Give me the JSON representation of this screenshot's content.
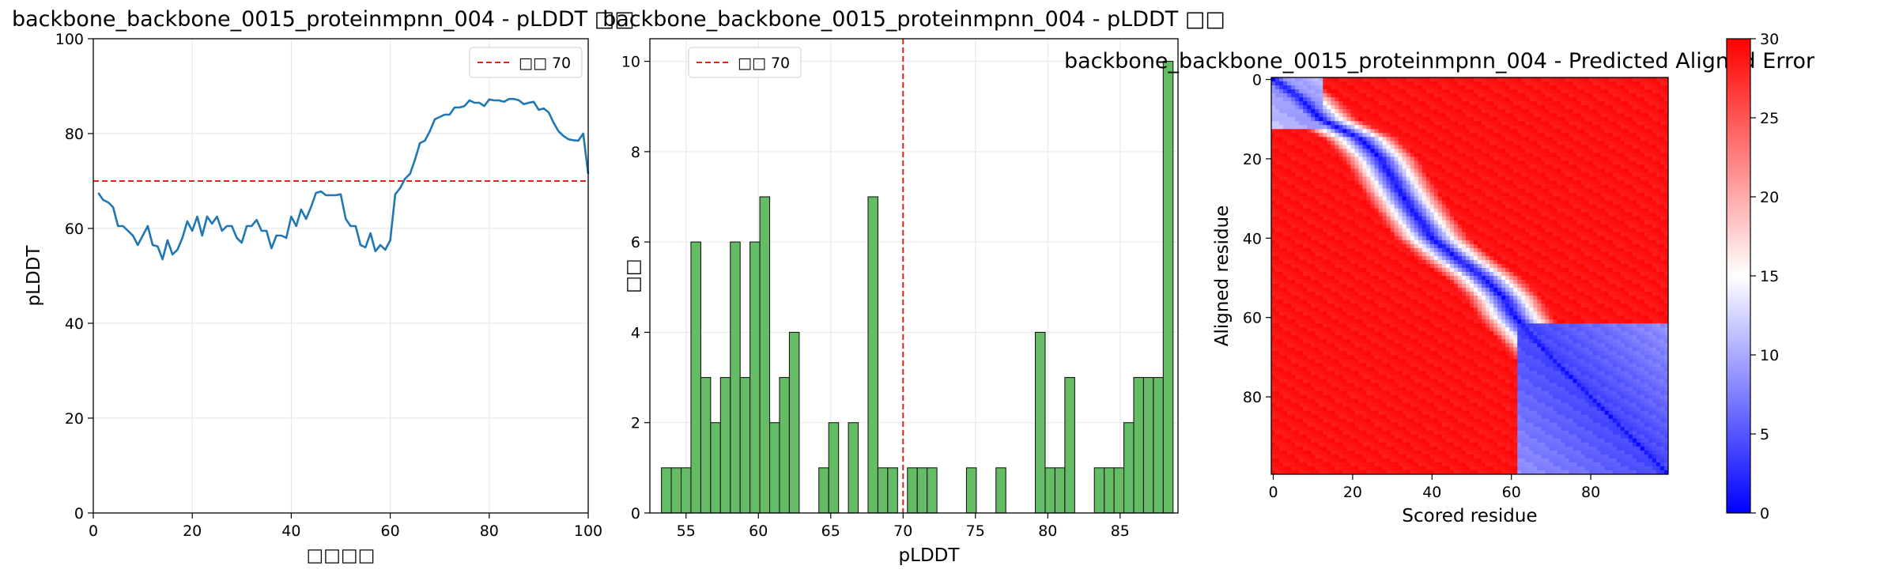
{
  "chart_data": [
    {
      "type": "line",
      "title": "backbone_backbone_0015_proteinmpnn_004 - pLDDT □□",
      "xlabel": "□□□□",
      "ylabel": "pLDDT",
      "xlim": [
        0,
        100
      ],
      "ylim": [
        0,
        100
      ],
      "xticks": [
        0,
        20,
        40,
        60,
        80,
        100
      ],
      "yticks": [
        0,
        20,
        40,
        60,
        80,
        100
      ],
      "grid": true,
      "legend": {
        "placement": "top-right",
        "entries": [
          "□□ 70"
        ]
      },
      "threshold": {
        "value": 70,
        "label": "□□ 70",
        "color": "#e8211b"
      },
      "series": [
        {
          "color": "#1f77b4",
          "x": [
            1,
            2,
            3,
            4,
            5,
            6,
            7,
            8,
            9,
            10,
            11,
            12,
            13,
            14,
            15,
            16,
            17,
            18,
            19,
            20,
            21,
            22,
            23,
            24,
            25,
            26,
            27,
            28,
            29,
            30,
            31,
            32,
            33,
            34,
            35,
            36,
            37,
            38,
            39,
            40,
            41,
            42,
            43,
            44,
            45,
            46,
            47,
            48,
            49,
            50,
            51,
            52,
            53,
            54,
            55,
            56,
            57,
            58,
            59,
            60,
            61,
            62,
            63,
            64,
            65,
            66,
            67,
            68,
            69,
            70,
            71,
            72,
            73,
            74,
            75,
            76,
            77,
            78,
            79,
            80,
            81,
            82,
            83,
            84,
            85,
            86,
            87,
            88,
            89,
            90,
            91,
            92,
            93,
            94,
            95,
            96,
            97,
            98,
            99,
            100
          ],
          "y": [
            67.5,
            66,
            65.5,
            64.5,
            60.5,
            60.5,
            59.5,
            58.5,
            56.5,
            58.5,
            60.5,
            56.5,
            56.2,
            53.5,
            57.5,
            54.5,
            55.5,
            58,
            61.5,
            59.5,
            62.5,
            58.5,
            62.5,
            61,
            62.5,
            59.5,
            60.5,
            60.5,
            58,
            57,
            60.5,
            60.5,
            61.8,
            59.5,
            59.5,
            55.8,
            58.5,
            58.5,
            58,
            62.5,
            60.5,
            64,
            62,
            64.5,
            67.5,
            67.8,
            67,
            67,
            67,
            67.2,
            62,
            60.5,
            60.5,
            56.5,
            56,
            59,
            55.2,
            56.5,
            55.5,
            57.5,
            67.2,
            68.5,
            70.5,
            71.5,
            74.5,
            78,
            78.5,
            80.5,
            83,
            83.5,
            84,
            84,
            85.5,
            85.5,
            85.8,
            87,
            86.5,
            86.5,
            85.8,
            87.2,
            87,
            87,
            86.7,
            87.3,
            87.3,
            87,
            86.2,
            86.5,
            86.7,
            85,
            85.3,
            84.5,
            82.3,
            80.5,
            79.5,
            78.8,
            78.6,
            78.5,
            80,
            71.5
          ]
        }
      ]
    },
    {
      "type": "bar",
      "title": "backbone_backbone_0015_proteinmpnn_004 - pLDDT □□",
      "xlabel": "pLDDT",
      "ylabel": "□□",
      "xlim": [
        52.5,
        89
      ],
      "ylim": [
        0,
        10.5
      ],
      "xticks": [
        55,
        60,
        65,
        70,
        75,
        80,
        85
      ],
      "yticks": [
        0,
        2,
        4,
        6,
        8,
        10
      ],
      "grid": true,
      "legend": {
        "placement": "top-left",
        "entries": [
          "□□ 70"
        ]
      },
      "threshold": {
        "value": 70,
        "label": "□□ 70",
        "color": "#e8211b"
      },
      "bar_color": "#5cb85c",
      "bin_start": 53.3,
      "bin_width": 0.68,
      "counts": [
        1,
        1,
        1,
        6,
        3,
        2,
        3,
        6,
        3,
        6,
        7,
        2,
        3,
        4,
        0,
        0,
        1,
        2,
        0,
        2,
        0,
        7,
        1,
        1,
        0,
        1,
        1,
        1,
        0,
        0,
        0,
        1,
        0,
        0,
        1,
        0,
        0,
        0,
        4,
        1,
        1,
        3,
        0,
        0,
        1,
        1,
        1,
        2,
        3,
        3,
        3,
        10
      ]
    },
    {
      "type": "heatmap",
      "title": "backbone_backbone_0015_proteinmpnn_004 - Predicted Aligned Error",
      "xlabel": "Scored residue",
      "ylabel": "Aligned residue",
      "xticks": [
        0,
        20,
        40,
        60,
        80
      ],
      "yticks": [
        0,
        20,
        40,
        60,
        80
      ],
      "n_residues": 100,
      "colormap": [
        "#0000ff",
        "#ffffff",
        "#ff0000"
      ],
      "colorbar": {
        "min": 0,
        "max": 30,
        "ticks": [
          0,
          5,
          10,
          15,
          20,
          25,
          30
        ]
      },
      "diagonal_path": [
        [
          0,
          0
        ],
        [
          5,
          7
        ],
        [
          10,
          12
        ],
        [
          15,
          22
        ],
        [
          20,
          27
        ],
        [
          30,
          33
        ],
        [
          40,
          40
        ],
        [
          45,
          46
        ],
        [
          50,
          53
        ],
        [
          55,
          58
        ],
        [
          60,
          61
        ],
        [
          70,
          70
        ],
        [
          80,
          80
        ],
        [
          99,
          99
        ]
      ],
      "domains": [
        {
          "start": 0,
          "end": 12,
          "pae": 8
        },
        {
          "start": 62,
          "end": 99,
          "pae": 4
        }
      ],
      "background_pae": 29
    }
  ]
}
